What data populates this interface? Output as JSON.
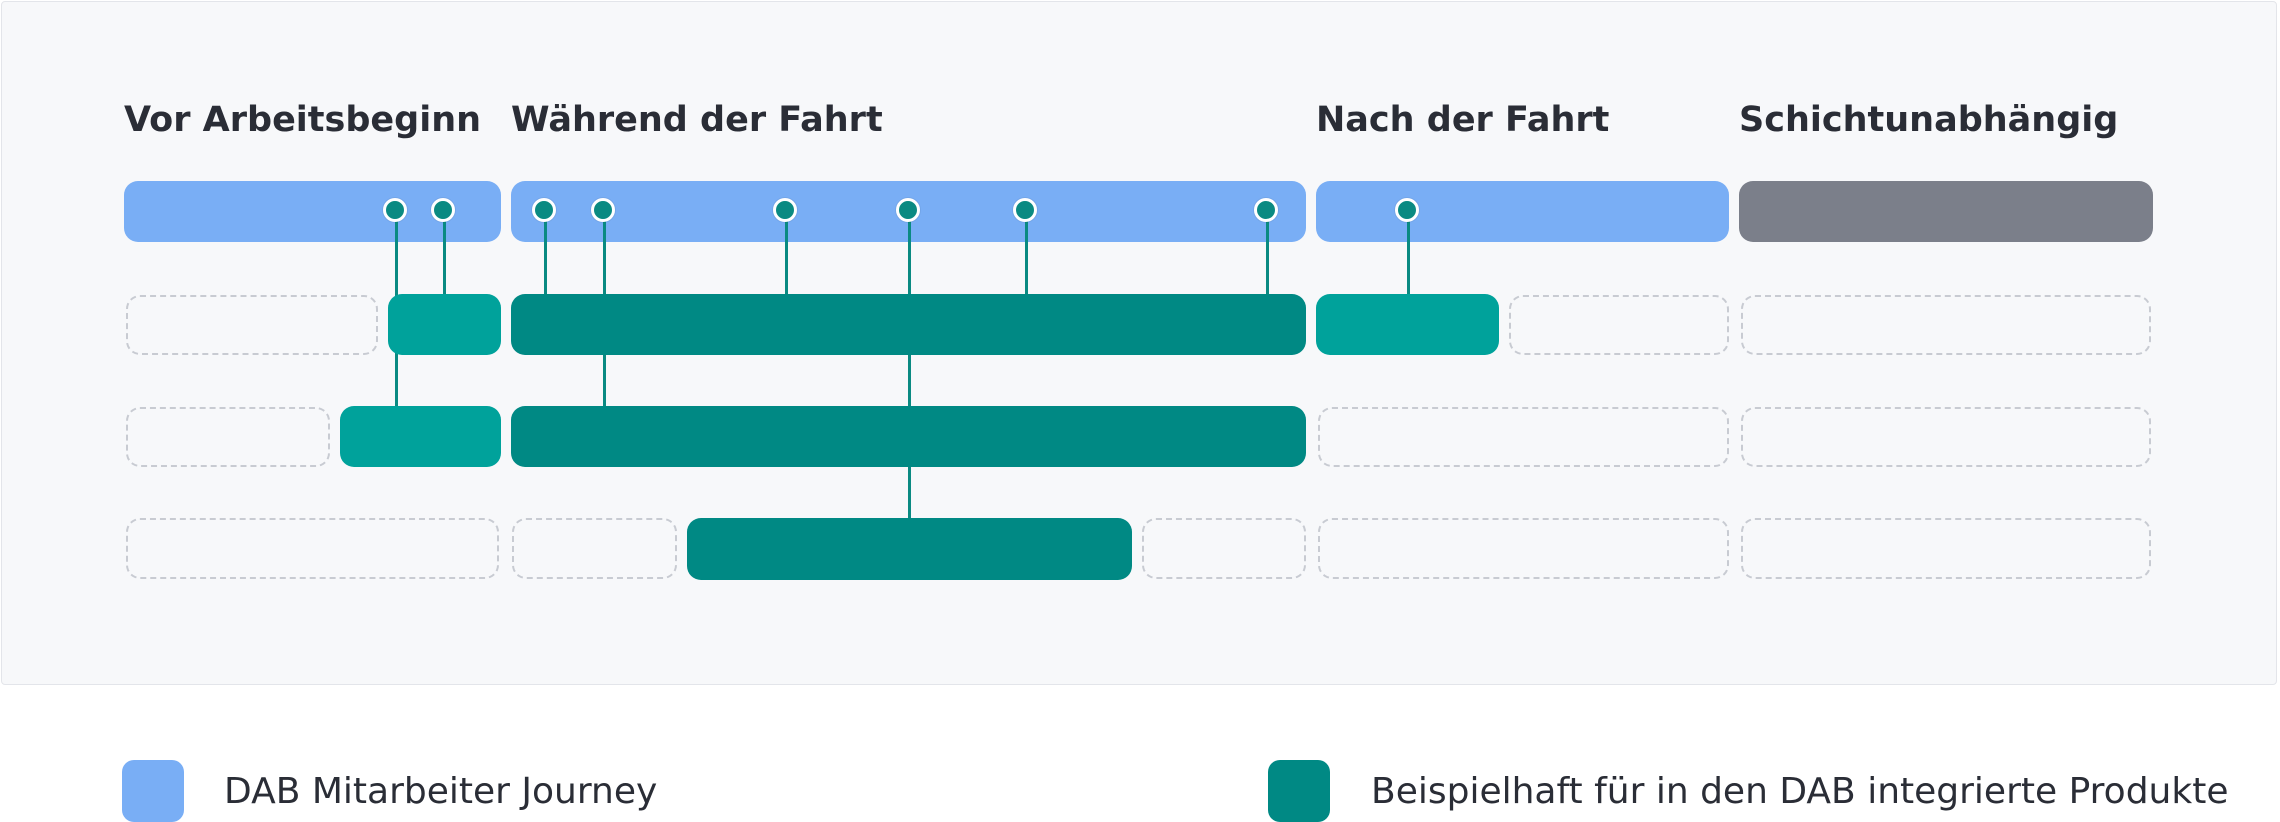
{
  "phases": [
    {
      "title": "Vor Arbeitsbeginn"
    },
    {
      "title": "Während der Fahrt"
    },
    {
      "title": "Nach der Fahrt"
    },
    {
      "title": "Schichtunabhängig"
    }
  ],
  "legend": {
    "journey": {
      "label": "DAB Mitarbeiter Journey",
      "color": "#79aef5"
    },
    "products": {
      "label": "Beispielhaft für in den DAB integrierte Produkte",
      "color": "#008984"
    }
  },
  "colors": {
    "journey": "#79aef5",
    "unassigned": "#7b7f8a",
    "product_light": "#00a29b",
    "product_dark": "#008984",
    "pin": "#0a8a82"
  }
}
